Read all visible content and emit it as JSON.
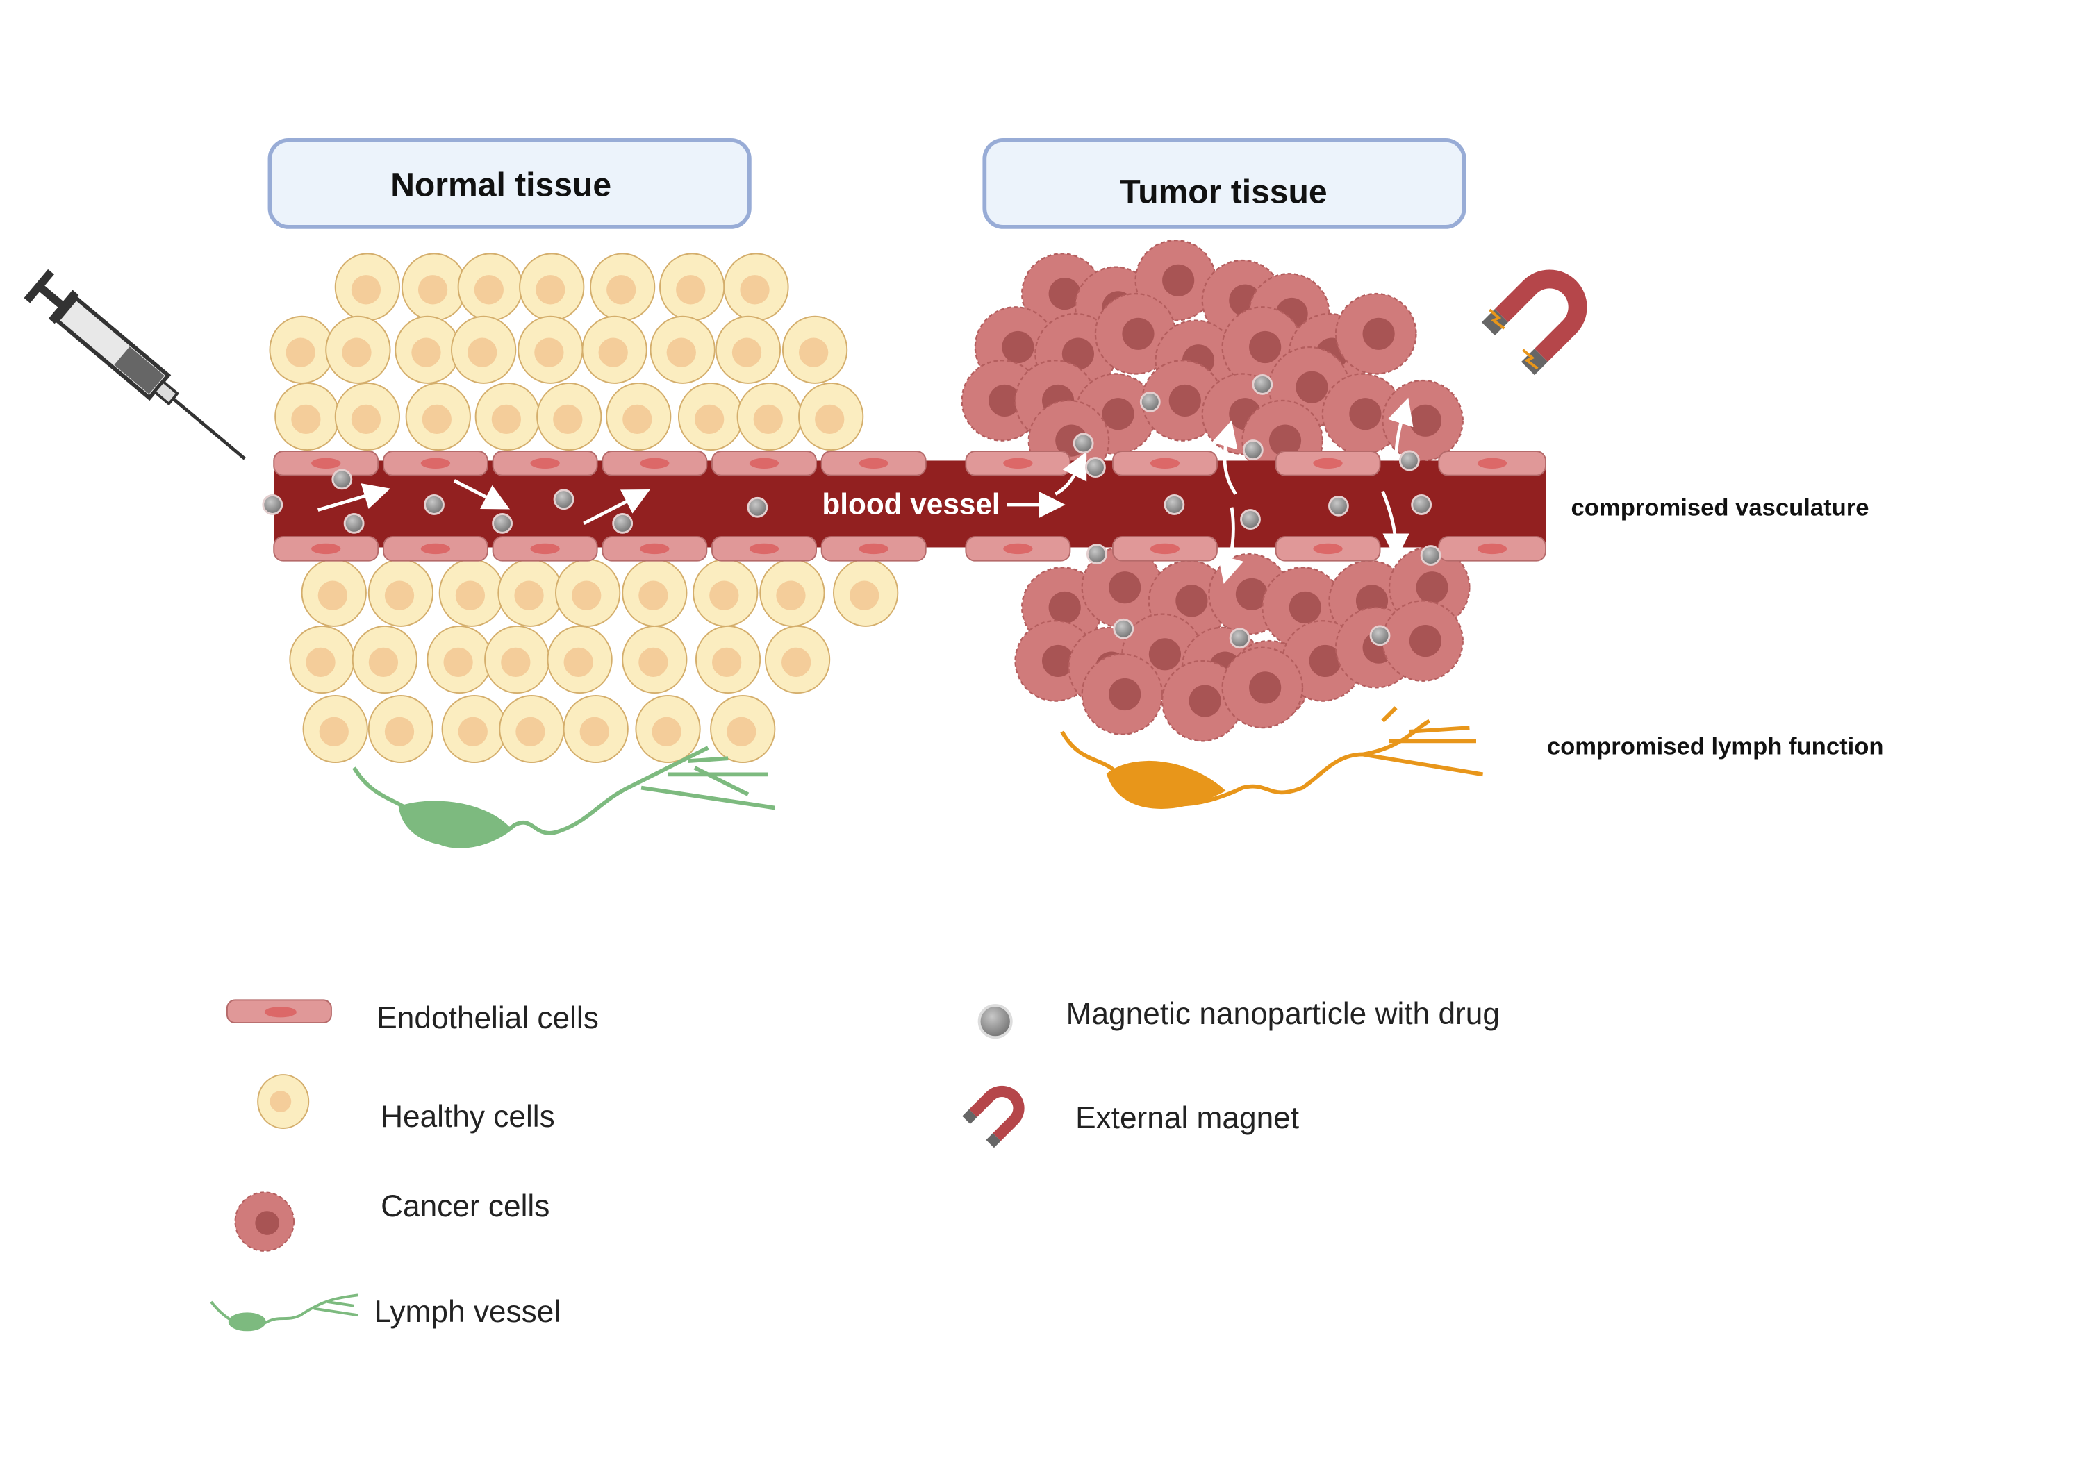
{
  "headers": {
    "normal": "Normal tissue",
    "tumor": "Tumor tissue"
  },
  "labels": {
    "blood_vessel": "blood vessel",
    "compromised_vasculature": "compromised vasculature",
    "compromised_lymph": "compromised lymph function"
  },
  "legend": [
    {
      "icon": "endothelial-cell-icon",
      "label": "Endothelial cells"
    },
    {
      "icon": "healthy-cell-icon",
      "label": "Healthy cells"
    },
    {
      "icon": "cancer-cell-icon",
      "label": "Cancer cells"
    },
    {
      "icon": "lymph-vessel-icon",
      "label": "Lymph vessel"
    },
    {
      "icon": "nanoparticle-icon",
      "label": "Magnetic nanoparticle with drug"
    },
    {
      "icon": "magnet-icon",
      "label": "External magnet"
    }
  ],
  "colors": {
    "vessel": "#922020",
    "endothelial": "#e09898",
    "endothelial_nucleus": "#dc6868",
    "healthy_cell": "#fbedc0",
    "healthy_nucleus": "#f4cd9a",
    "cancer_cell": "#d07b7b",
    "cancer_nucleus": "#a85454",
    "normal_lymph": "#7dba7f",
    "tumor_lymph": "#e8961a",
    "magnet": "#b5464a",
    "header_fill": "#ecf3fb",
    "header_border": "#98acd6"
  }
}
